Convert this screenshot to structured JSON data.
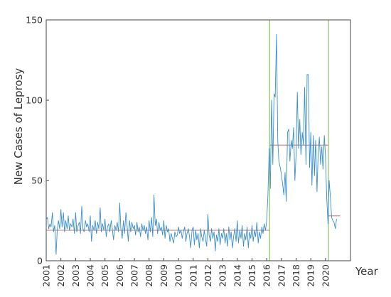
{
  "chart_data": {
    "type": "line",
    "xlabel": "Year",
    "ylabel": "New Cases of Leprosy",
    "xlim": [
      2001,
      2021.7
    ],
    "ylim": [
      0,
      150
    ],
    "x_ticks": [
      2001,
      2002,
      2003,
      2004,
      2005,
      2006,
      2007,
      2008,
      2009,
      2010,
      2011,
      2012,
      2013,
      2014,
      2015,
      2016,
      2017,
      2018,
      2019,
      2020
    ],
    "y_ticks": [
      0,
      50,
      100,
      150
    ],
    "grid": false,
    "legend": "none",
    "colors": {
      "series": "#3a8fd0",
      "mean_level": "#d98c7a",
      "changepoint": "#8fc45c",
      "axis": "#444444"
    },
    "changepoints": [
      2016.2,
      2020.2
    ],
    "series": [
      {
        "type": "line",
        "values": [
          [
            2001.0,
            26
          ],
          [
            2001.08,
            27
          ],
          [
            2001.17,
            20
          ],
          [
            2001.25,
            23
          ],
          [
            2001.33,
            21
          ],
          [
            2001.42,
            30
          ],
          [
            2001.5,
            18
          ],
          [
            2001.58,
            22
          ],
          [
            2001.67,
            4
          ],
          [
            2001.75,
            19
          ],
          [
            2001.83,
            25
          ],
          [
            2001.92,
            20
          ],
          [
            2002.0,
            32
          ],
          [
            2002.08,
            21
          ],
          [
            2002.17,
            30
          ],
          [
            2002.25,
            18
          ],
          [
            2002.33,
            25
          ],
          [
            2002.42,
            20
          ],
          [
            2002.5,
            28
          ],
          [
            2002.58,
            19
          ],
          [
            2002.67,
            23
          ],
          [
            2002.75,
            21
          ],
          [
            2002.83,
            26
          ],
          [
            2002.92,
            17
          ],
          [
            2003.0,
            30
          ],
          [
            2003.08,
            18
          ],
          [
            2003.17,
            22
          ],
          [
            2003.25,
            24
          ],
          [
            2003.33,
            17
          ],
          [
            2003.42,
            34
          ],
          [
            2003.5,
            20
          ],
          [
            2003.58,
            18
          ],
          [
            2003.67,
            25
          ],
          [
            2003.75,
            21
          ],
          [
            2003.83,
            23
          ],
          [
            2003.92,
            18
          ],
          [
            2004.0,
            28
          ],
          [
            2004.08,
            12
          ],
          [
            2004.17,
            22
          ],
          [
            2004.25,
            19
          ],
          [
            2004.33,
            25
          ],
          [
            2004.42,
            17
          ],
          [
            2004.5,
            24
          ],
          [
            2004.58,
            20
          ],
          [
            2004.67,
            33
          ],
          [
            2004.75,
            18
          ],
          [
            2004.83,
            23
          ],
          [
            2004.92,
            19
          ],
          [
            2005.0,
            26
          ],
          [
            2005.08,
            15
          ],
          [
            2005.17,
            21
          ],
          [
            2005.25,
            23
          ],
          [
            2005.33,
            18
          ],
          [
            2005.42,
            25
          ],
          [
            2005.5,
            20
          ],
          [
            2005.58,
            13
          ],
          [
            2005.67,
            22
          ],
          [
            2005.75,
            19
          ],
          [
            2005.83,
            24
          ],
          [
            2005.92,
            18
          ],
          [
            2006.0,
            36
          ],
          [
            2006.08,
            20
          ],
          [
            2006.17,
            14
          ],
          [
            2006.25,
            25
          ],
          [
            2006.33,
            17
          ],
          [
            2006.42,
            30
          ],
          [
            2006.5,
            22
          ],
          [
            2006.58,
            12
          ],
          [
            2006.67,
            25
          ],
          [
            2006.75,
            18
          ],
          [
            2006.83,
            24
          ],
          [
            2006.92,
            20
          ],
          [
            2007.0,
            22
          ],
          [
            2007.08,
            16
          ],
          [
            2007.17,
            24
          ],
          [
            2007.25,
            18
          ],
          [
            2007.33,
            21
          ],
          [
            2007.42,
            15
          ],
          [
            2007.5,
            23
          ],
          [
            2007.58,
            19
          ],
          [
            2007.67,
            22
          ],
          [
            2007.75,
            17
          ],
          [
            2007.83,
            21
          ],
          [
            2007.92,
            13
          ],
          [
            2008.0,
            25
          ],
          [
            2008.08,
            18
          ],
          [
            2008.17,
            27
          ],
          [
            2008.25,
            15
          ],
          [
            2008.33,
            41
          ],
          [
            2008.42,
            22
          ],
          [
            2008.5,
            26
          ],
          [
            2008.58,
            17
          ],
          [
            2008.67,
            24
          ],
          [
            2008.75,
            19
          ],
          [
            2008.83,
            21
          ],
          [
            2008.92,
            16
          ],
          [
            2009.0,
            25
          ],
          [
            2009.08,
            14
          ],
          [
            2009.17,
            22
          ],
          [
            2009.25,
            18
          ],
          [
            2009.33,
            20
          ],
          [
            2009.42,
            12
          ],
          [
            2009.5,
            17
          ],
          [
            2009.58,
            14
          ],
          [
            2009.67,
            11
          ],
          [
            2009.75,
            18
          ],
          [
            2009.83,
            15
          ],
          [
            2009.92,
            16
          ],
          [
            2010.0,
            21
          ],
          [
            2010.08,
            17
          ],
          [
            2010.17,
            19
          ],
          [
            2010.25,
            14
          ],
          [
            2010.33,
            18
          ],
          [
            2010.42,
            21
          ],
          [
            2010.5,
            12
          ],
          [
            2010.58,
            17
          ],
          [
            2010.67,
            20
          ],
          [
            2010.75,
            15
          ],
          [
            2010.83,
            8
          ],
          [
            2010.92,
            19
          ],
          [
            2011.0,
            21
          ],
          [
            2011.08,
            10
          ],
          [
            2011.17,
            19
          ],
          [
            2011.25,
            13
          ],
          [
            2011.33,
            17
          ],
          [
            2011.42,
            8
          ],
          [
            2011.5,
            20
          ],
          [
            2011.58,
            15
          ],
          [
            2011.67,
            12
          ],
          [
            2011.75,
            19
          ],
          [
            2011.83,
            14
          ],
          [
            2011.92,
            9
          ],
          [
            2012.0,
            29
          ],
          [
            2012.08,
            16
          ],
          [
            2012.17,
            12
          ],
          [
            2012.25,
            20
          ],
          [
            2012.33,
            14
          ],
          [
            2012.42,
            18
          ],
          [
            2012.5,
            6
          ],
          [
            2012.58,
            16
          ],
          [
            2012.67,
            12
          ],
          [
            2012.75,
            20
          ],
          [
            2012.83,
            10
          ],
          [
            2012.92,
            17
          ],
          [
            2013.0,
            14
          ],
          [
            2013.08,
            20
          ],
          [
            2013.17,
            11
          ],
          [
            2013.25,
            17
          ],
          [
            2013.33,
            9
          ],
          [
            2013.42,
            21
          ],
          [
            2013.5,
            13
          ],
          [
            2013.58,
            18
          ],
          [
            2013.67,
            8
          ],
          [
            2013.75,
            15
          ],
          [
            2013.83,
            20
          ],
          [
            2013.92,
            12
          ],
          [
            2014.0,
            25
          ],
          [
            2014.08,
            11
          ],
          [
            2014.17,
            19
          ],
          [
            2014.25,
            14
          ],
          [
            2014.33,
            22
          ],
          [
            2014.42,
            9
          ],
          [
            2014.5,
            17
          ],
          [
            2014.58,
            13
          ],
          [
            2014.67,
            21
          ],
          [
            2014.75,
            8
          ],
          [
            2014.83,
            18
          ],
          [
            2014.92,
            14
          ],
          [
            2015.0,
            22
          ],
          [
            2015.08,
            12
          ],
          [
            2015.17,
            19
          ],
          [
            2015.25,
            15
          ],
          [
            2015.33,
            24
          ],
          [
            2015.42,
            11
          ],
          [
            2015.5,
            18
          ],
          [
            2015.58,
            14
          ],
          [
            2015.67,
            21
          ],
          [
            2015.75,
            17
          ],
          [
            2015.83,
            23
          ],
          [
            2015.92,
            19
          ],
          [
            2016.0,
            25
          ],
          [
            2016.08,
            40
          ],
          [
            2016.17,
            70
          ],
          [
            2016.25,
            45
          ],
          [
            2016.33,
            100
          ],
          [
            2016.42,
            60
          ],
          [
            2016.5,
            104
          ],
          [
            2016.58,
            102
          ],
          [
            2016.67,
            141
          ],
          [
            2016.75,
            75
          ],
          [
            2016.83,
            62
          ],
          [
            2016.92,
            58
          ],
          [
            2017.0,
            54
          ],
          [
            2017.08,
            48
          ],
          [
            2017.17,
            41
          ],
          [
            2017.25,
            55
          ],
          [
            2017.33,
            37
          ],
          [
            2017.42,
            80
          ],
          [
            2017.5,
            82
          ],
          [
            2017.58,
            62
          ],
          [
            2017.67,
            75
          ],
          [
            2017.75,
            70
          ],
          [
            2017.83,
            83
          ],
          [
            2017.92,
            50
          ],
          [
            2018.0,
            66
          ],
          [
            2018.08,
            105
          ],
          [
            2018.17,
            70
          ],
          [
            2018.25,
            88
          ],
          [
            2018.33,
            66
          ],
          [
            2018.42,
            80
          ],
          [
            2018.5,
            72
          ],
          [
            2018.58,
            108
          ],
          [
            2018.67,
            60
          ],
          [
            2018.75,
            116
          ],
          [
            2018.83,
            116
          ],
          [
            2018.92,
            58
          ],
          [
            2019.0,
            80
          ],
          [
            2019.08,
            47
          ],
          [
            2019.17,
            78
          ],
          [
            2019.25,
            53
          ],
          [
            2019.33,
            75
          ],
          [
            2019.42,
            43
          ],
          [
            2019.5,
            66
          ],
          [
            2019.58,
            77
          ],
          [
            2019.67,
            60
          ],
          [
            2019.75,
            71
          ],
          [
            2019.83,
            57
          ],
          [
            2019.92,
            78
          ],
          [
            2020.0,
            65
          ],
          [
            2020.08,
            40
          ],
          [
            2020.17,
            23
          ],
          [
            2020.25,
            50
          ],
          [
            2020.33,
            40
          ],
          [
            2020.42,
            27
          ],
          [
            2020.5,
            25
          ],
          [
            2020.58,
            24
          ],
          [
            2020.67,
            20
          ],
          [
            2020.75,
            26
          ]
        ]
      },
      {
        "type": "step",
        "segments": [
          {
            "x": [
              2001.0,
              2016.2
            ],
            "y": 19
          },
          {
            "x": [
              2016.2,
              2020.2
            ],
            "y": 72
          },
          {
            "x": [
              2020.2,
              2021.0
            ],
            "y": 28
          }
        ]
      }
    ]
  }
}
